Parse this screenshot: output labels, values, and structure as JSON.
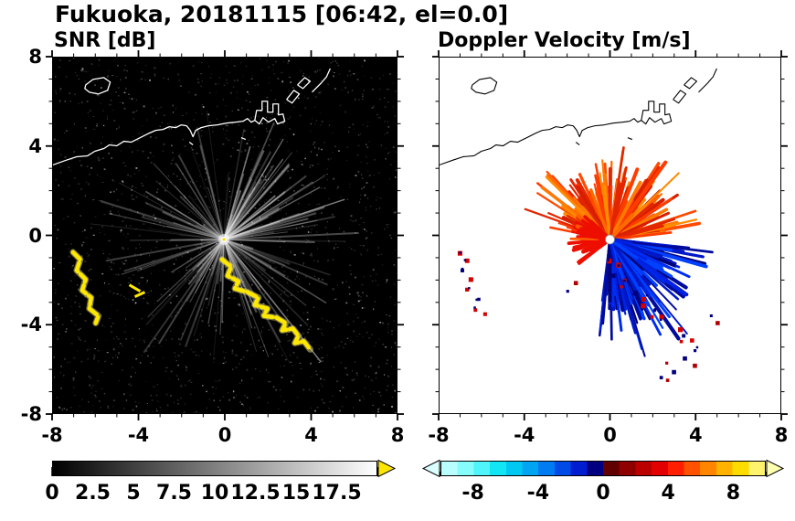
{
  "title": "Fukuoka, 20181115 [06:42, el=0.0]",
  "panels": [
    {
      "title": "SNR [dB]",
      "x_tick_labels": [
        "-8",
        "-4",
        "0",
        "4",
        "8"
      ],
      "y_tick_labels": [
        "8",
        "4",
        "0",
        "-4",
        "-8"
      ]
    },
    {
      "title": "Doppler Velocity [m/s]",
      "x_tick_labels": [
        "-8",
        "-4",
        "0",
        "4",
        "8"
      ]
    }
  ],
  "colorbars": [
    {
      "name": "snr",
      "tick_labels": [
        "0",
        "2.5",
        "5",
        "7.5",
        "10",
        "12.5",
        "15",
        "17.5"
      ],
      "tick_values": [
        0,
        2.5,
        5,
        7.5,
        10,
        12.5,
        15,
        17.5
      ],
      "range": [
        0,
        20
      ],
      "minor_step": 0.5,
      "major_step": 2.5,
      "gradient": [
        "#000000",
        "#ffffff"
      ],
      "right_arrow_color": "#ffe600"
    },
    {
      "name": "doppler",
      "tick_labels": [
        "-8",
        "-4",
        "0",
        "4",
        "8"
      ],
      "tick_values": [
        -8,
        -4,
        0,
        4,
        8
      ],
      "range": [
        -10,
        10
      ],
      "minor_step": 1,
      "major_step": 4,
      "colors": [
        "#b9fefe",
        "#86fcfc",
        "#4ff5fa",
        "#12e6f5",
        "#00c8f2",
        "#00a5f2",
        "#007bf2",
        "#004ae8",
        "#001ed0",
        "#000080",
        "#600000",
        "#8f0000",
        "#bb0000",
        "#e30000",
        "#ff1e00",
        "#ff5200",
        "#ff8400",
        "#ffb300",
        "#ffdc00",
        "#fff36e"
      ],
      "left_arrow_color": "#d9ffff",
      "right_arrow_color": "#ffffb0"
    }
  ],
  "chart_data": [
    {
      "type": "heatmap",
      "title": "SNR [dB]",
      "xlabel": "",
      "ylabel": "",
      "xlim": [
        -8,
        8
      ],
      "ylim": [
        -8,
        8
      ],
      "xticks": [
        -8,
        -4,
        0,
        4,
        8
      ],
      "yticks": [
        -8,
        -4,
        0,
        4,
        8
      ],
      "grid": false,
      "background": "black with low-SNR speckle noise of 0-4 dB over the whole domain",
      "colorbar": {
        "ticks": [
          0,
          2.5,
          5,
          7.5,
          10,
          12.5,
          15,
          17.5
        ],
        "range_shown": [
          0,
          20
        ],
        "colormap": "black-to-white grayscale with yellow over-range arrow"
      },
      "features": [
        {
          "name": "radar-origin",
          "x": 0,
          "y": 0,
          "description": "bright point at radar location"
        },
        {
          "name": "radial-interference-spokes",
          "description": "gray rays radiating from origin out to ~4 km in all directions, brightest toward the upper right",
          "value_dB": "5-12"
        },
        {
          "name": "clutter-arc-southwest",
          "description": "high-SNR yellow squiggly arc from about (-7.1,-0.8) down to (-6.0,-3.9)",
          "value_dB": ">17.5"
        },
        {
          "name": "clutter-arc-southeast",
          "description": "high-SNR yellow broken chain from about (-0.1,-1.1) curving down-right to (4.0,-5.1)",
          "value_dB": ">17.5"
        },
        {
          "name": "coastline",
          "description": "white coastline of the bay across the upper part of the domain (y ~ 4 to 7) with harbor piers and a small island near (-6,6.8)"
        }
      ]
    },
    {
      "type": "heatmap",
      "title": "Doppler Velocity [m/s]",
      "xlabel": "",
      "ylabel": "",
      "xlim": [
        -8,
        8
      ],
      "ylim": [
        -8,
        8
      ],
      "xticks": [
        -8,
        -4,
        0,
        4,
        8
      ],
      "yticks": [
        -8,
        -4,
        0,
        4,
        8
      ],
      "grid": false,
      "background": "white (no echo)",
      "colorbar": {
        "ticks": [
          -8,
          -4,
          0,
          4,
          8
        ],
        "range_shown": [
          -10,
          10
        ],
        "colormap": "diverging cyan-blue-navy / dark red-orange-yellow with under- and over-range arrows"
      },
      "features": [
        {
          "name": "radar-origin",
          "x": 0,
          "y": 0,
          "description": "small white disc at radar location"
        },
        {
          "name": "outbound-lobe",
          "description": "spiky red/orange fan north and northwest of the radar, radius ~3 km, velocities +2 to +8 m/s"
        },
        {
          "name": "inbound-lobe",
          "description": "spiky blue/navy fan southeast of the radar, radius ~3.5 km, velocities -2 to -8 m/s"
        },
        {
          "name": "compact-red-blob",
          "description": "solid red patch immediately west of the origin"
        },
        {
          "name": "clutter-echoes",
          "description": "scattered red and navy pixels along the southwest arc (-7,-1 to -6,-4) and the southeast chain (0,-1 to 4,-5)"
        },
        {
          "name": "coastline",
          "description": "black coastline, same shape as SNR panel"
        }
      ]
    }
  ]
}
